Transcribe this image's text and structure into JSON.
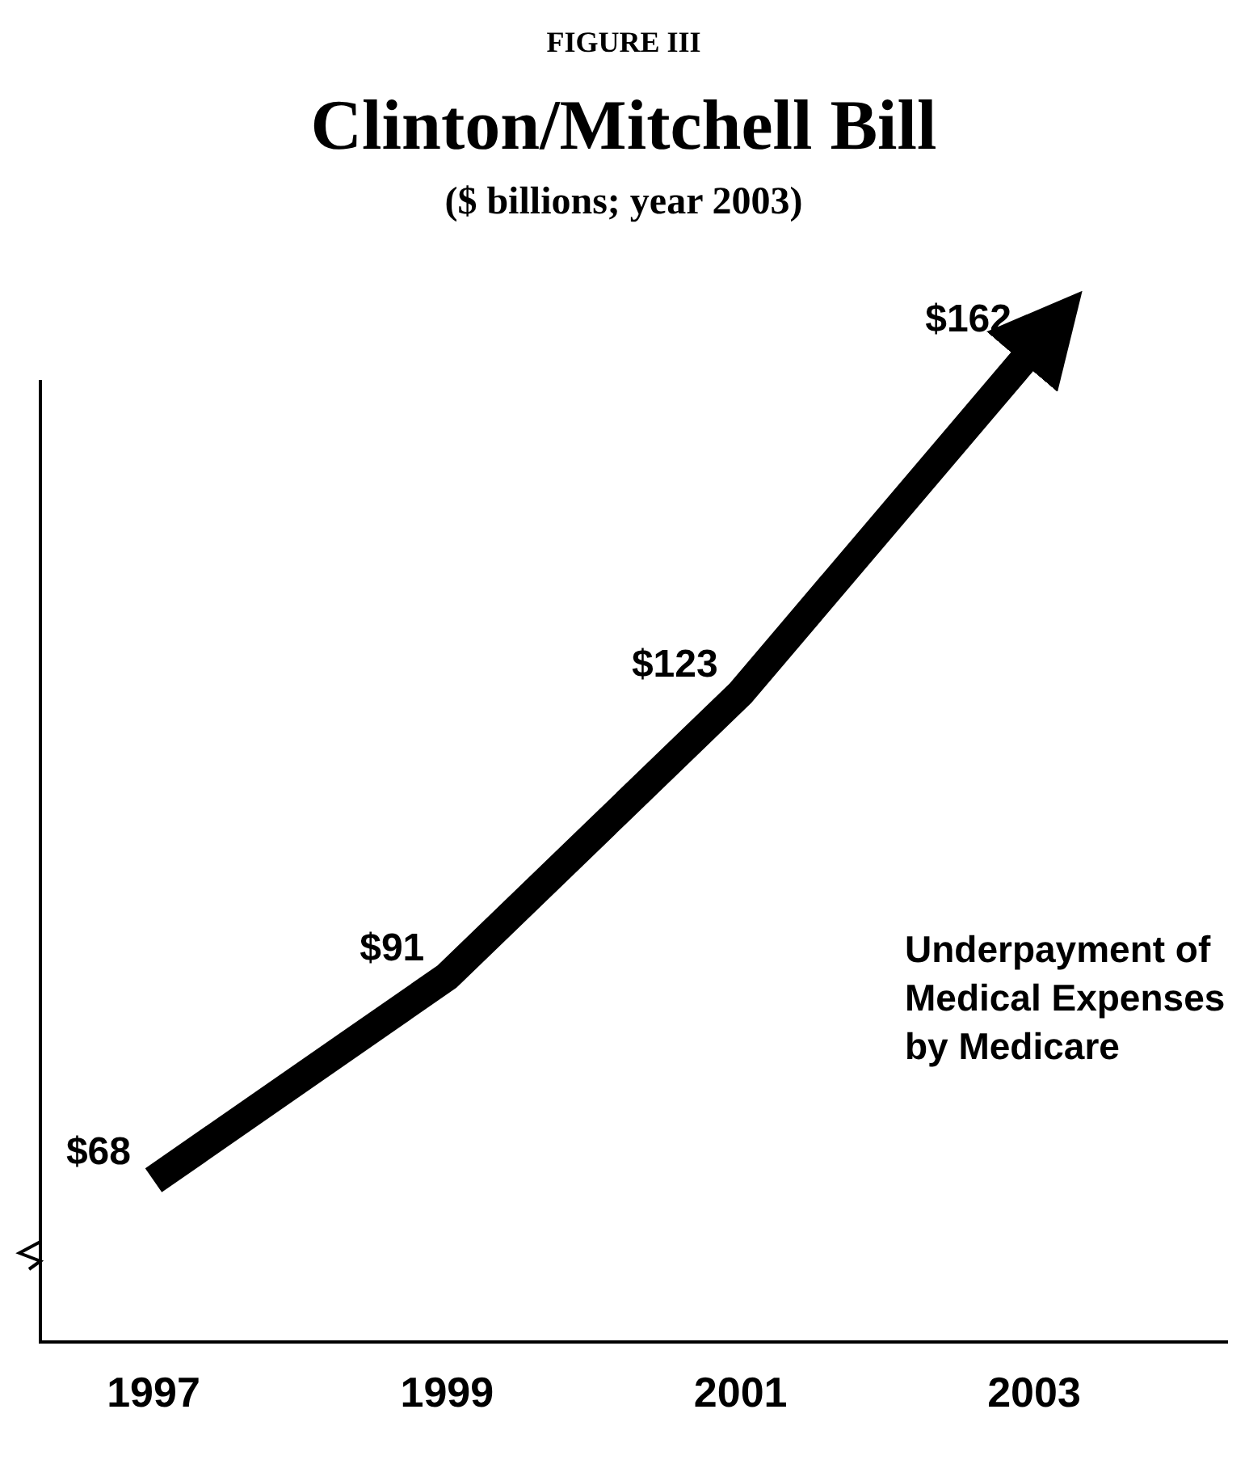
{
  "chart_data": {
    "type": "line",
    "title": "Clinton/Mitchell Bill",
    "subtitle": "($ billions; year 2003)",
    "annotations": [
      "FIGURE III",
      "Underpayment of Medical Expenses by Medicare"
    ],
    "categories": [
      "1997",
      "1999",
      "2001",
      "2003"
    ],
    "values": [
      68,
      91,
      123,
      162
    ],
    "value_labels": [
      "$68",
      "$91",
      "$123",
      "$162"
    ],
    "color": "#000000"
  }
}
